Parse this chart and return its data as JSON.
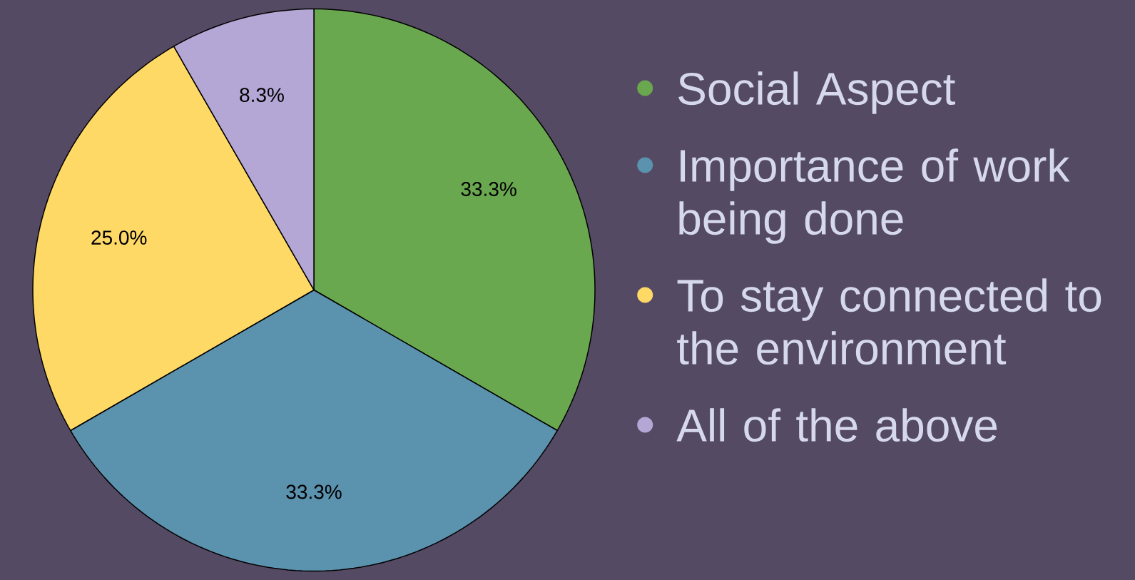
{
  "chart_data": {
    "type": "pie",
    "categories": [
      "Social Aspect",
      "Importance of work being done",
      "To stay connected to the environment",
      "All of the above"
    ],
    "values": [
      33.3,
      33.3,
      25.0,
      8.3
    ],
    "value_labels": [
      "33.3%",
      "33.3%",
      "25.0%",
      "8.3%"
    ],
    "colors": [
      "#6aa84f",
      "#5b92ae",
      "#ffd966",
      "#b4a7d6"
    ],
    "legend": "right"
  }
}
